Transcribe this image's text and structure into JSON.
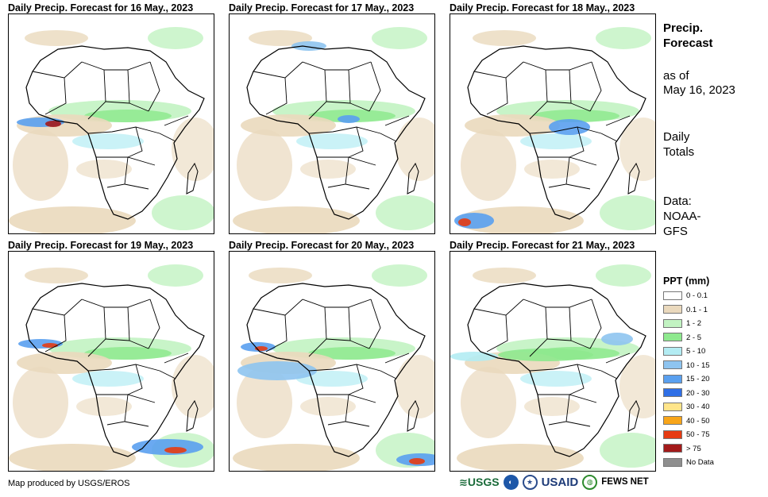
{
  "panels": [
    {
      "title": "Daily Precip. Forecast for 16 May., 2023"
    },
    {
      "title": "Daily Precip. Forecast for 17 May., 2023"
    },
    {
      "title": "Daily Precip. Forecast for 18 May., 2023"
    },
    {
      "title": "Daily Precip. Forecast for 19 May., 2023"
    },
    {
      "title": "Daily Precip. Forecast for 20 May., 2023"
    },
    {
      "title": "Daily Precip. Forecast for 21 May., 2023"
    }
  ],
  "sidebar": {
    "heading_line1": "Precip.",
    "heading_line2": "Forecast",
    "asof_line1": "as of",
    "asof_line2": "May 16, 2023",
    "totals_line1": "Daily",
    "totals_line2": "Totals",
    "data_line1": "Data:",
    "data_line2": "NOAA-",
    "data_line3": "GFS"
  },
  "legend": {
    "title": "PPT (mm)",
    "items": [
      {
        "label": "0 - 0.1",
        "color": "#ffffff"
      },
      {
        "label": "0.1 - 1",
        "color": "#ead9bd"
      },
      {
        "label": "1 - 2",
        "color": "#c2f3c2"
      },
      {
        "label": "2 - 5",
        "color": "#8ee98e"
      },
      {
        "label": "5 - 10",
        "color": "#b3ecf3"
      },
      {
        "label": "10 - 15",
        "color": "#8ec4f0"
      },
      {
        "label": "15 - 20",
        "color": "#5aa0ef"
      },
      {
        "label": "20 - 30",
        "color": "#2f6fe6"
      },
      {
        "label": "30 - 40",
        "color": "#ffe58a"
      },
      {
        "label": "40 - 50",
        "color": "#f8a519"
      },
      {
        "label": "50 - 75",
        "color": "#e63b12"
      },
      {
        "label": "> 75",
        "color": "#a31a1a"
      },
      {
        "label": "No Data",
        "color": "#8f8f8f"
      }
    ]
  },
  "footer": {
    "credit": "Map produced by USGS/EROS",
    "logo_usgs": "USGS",
    "logo_usaid": "USAID",
    "logo_fews": "FEWS NET"
  }
}
